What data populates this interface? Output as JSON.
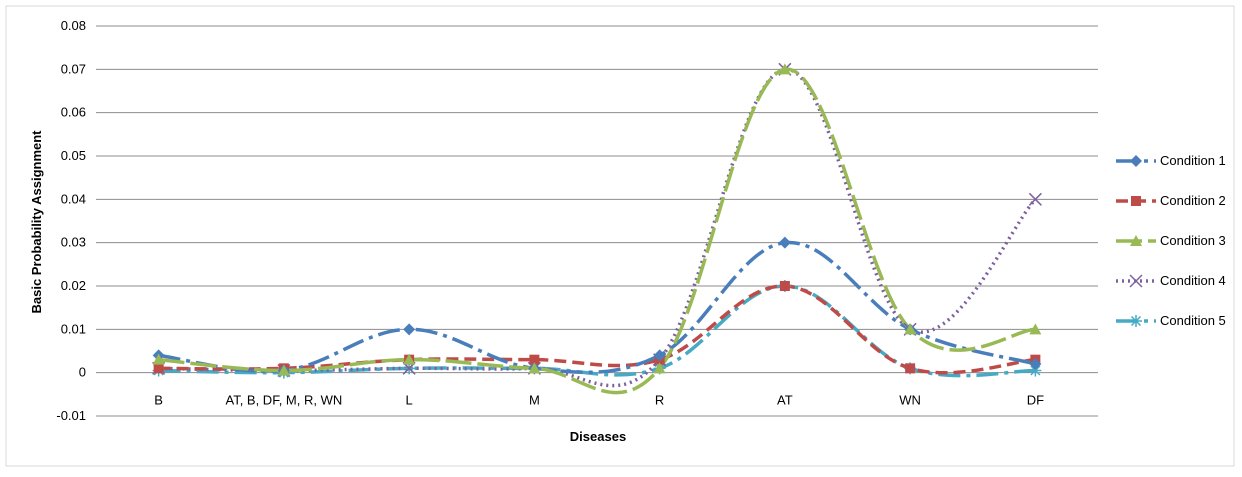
{
  "chart_data": {
    "type": "line",
    "title": "",
    "xlabel": "Diseases",
    "ylabel": "Basic Probability Assignment",
    "ylim": [
      -0.01,
      0.08
    ],
    "yticks": [
      -0.01,
      0,
      0.01,
      0.02,
      0.03,
      0.04,
      0.05,
      0.06,
      0.07,
      0.08
    ],
    "ytick_labels": [
      "-0.01",
      "0",
      "0.01",
      "0.02",
      "0.03",
      "0.04",
      "0.05",
      "0.06",
      "0.07",
      "0.08"
    ],
    "categories": [
      "B",
      "AT, B, DF, M, R, WN",
      "L",
      "M",
      "R",
      "AT",
      "WN",
      "DF"
    ],
    "grid": "horizontal",
    "legend_position": "right",
    "series": [
      {
        "name": "Condition 1",
        "color": "#4a7ebb",
        "marker": "diamond",
        "dash": "22,6,4,6",
        "values": [
          0.004,
          0.0005,
          0.01,
          0.001,
          0.004,
          0.03,
          0.01,
          0.002
        ]
      },
      {
        "name": "Condition 2",
        "color": "#be4b48",
        "marker": "square",
        "dash": "12,6",
        "values": [
          0.001,
          0.001,
          0.003,
          0.003,
          0.003,
          0.02,
          0.001,
          0.003
        ]
      },
      {
        "name": "Condition 3",
        "color": "#98b954",
        "marker": "triangle",
        "dash": "26,6",
        "values": [
          0.003,
          0.0005,
          0.003,
          0.001,
          0.001,
          0.07,
          0.01,
          0.01
        ]
      },
      {
        "name": "Condition 4",
        "color": "#7d60a0",
        "marker": "x",
        "dash": "2,4",
        "values": [
          0.001,
          0.0005,
          0.001,
          0.001,
          0.003,
          0.07,
          0.01,
          0.04
        ]
      },
      {
        "name": "Condition 5",
        "color": "#46aac5",
        "marker": "star",
        "dash": "22,6,4,6",
        "values": [
          0.0005,
          0.0,
          0.001,
          0.001,
          0.001,
          0.02,
          0.001,
          0.0005
        ]
      }
    ]
  }
}
